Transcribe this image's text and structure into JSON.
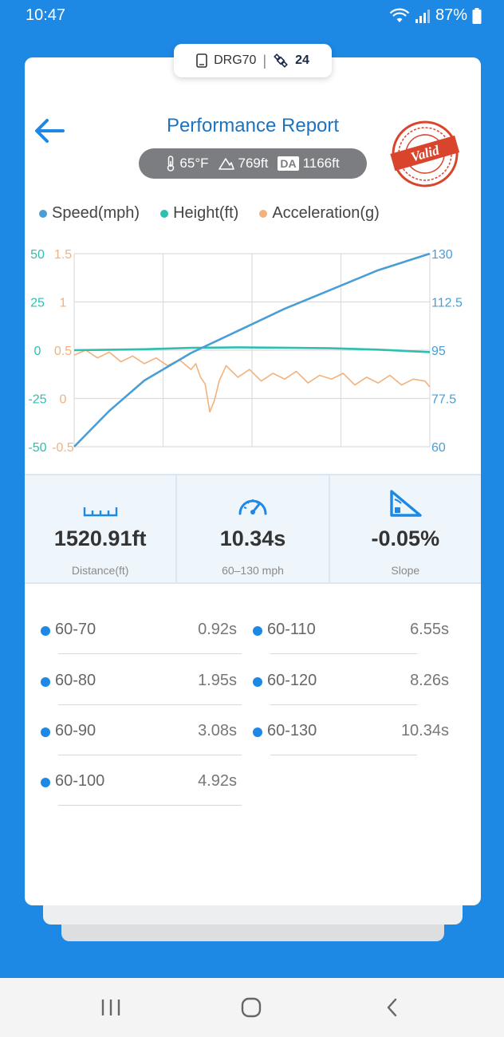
{
  "status": {
    "time": "10:47",
    "battery": "87%"
  },
  "device": {
    "name": "DRG70",
    "satellites": "24"
  },
  "header": {
    "title": "Performance Report",
    "stamp_text": "Valid"
  },
  "conditions": {
    "temperature": "65°F",
    "altitude": "769ft",
    "da_label": "DA",
    "density_altitude": "1166ft"
  },
  "colors": {
    "speed": "#4a9ed6",
    "height": "#2fbfb0",
    "acceleration": "#f2b27d",
    "accent": "#1e88e5"
  },
  "chart_data": {
    "type": "line",
    "legend": [
      "Speed(mph)",
      "Height(ft)",
      "Acceleration(g)"
    ],
    "x_range": [
      0,
      1520.91
    ],
    "grid": true,
    "legend_position": "top",
    "axes": {
      "left_outer": {
        "series": "Height(ft)",
        "ticks": [
          "50",
          "25",
          "0",
          "-25",
          "-50"
        ],
        "range": [
          -50,
          50
        ]
      },
      "left_inner": {
        "series": "Acceleration(g)",
        "ticks": [
          "1.5",
          "1",
          "0.5",
          "0",
          "-0.5"
        ],
        "range": [
          -0.5,
          1.5
        ]
      },
      "right": {
        "series": "Speed(mph)",
        "ticks": [
          "130",
          "112.5",
          "95",
          "77.5",
          "60"
        ],
        "range": [
          60,
          130
        ]
      }
    },
    "series": [
      {
        "name": "Speed(mph)",
        "x": [
          0,
          150,
          300,
          500,
          700,
          900,
          1100,
          1300,
          1520.91
        ],
        "values": [
          60,
          73,
          84,
          94,
          102,
          110,
          117,
          124,
          130
        ]
      },
      {
        "name": "Height(ft)",
        "x": [
          0,
          300,
          500,
          700,
          900,
          1100,
          1300,
          1520.91
        ],
        "values": [
          0,
          0.5,
          1.2,
          1.5,
          1.3,
          1,
          0.3,
          -1
        ]
      },
      {
        "name": "Acceleration(g)",
        "x": [
          0,
          50,
          100,
          150,
          200,
          250,
          300,
          350,
          400,
          450,
          500,
          520,
          540,
          560,
          580,
          600,
          620,
          650,
          700,
          750,
          800,
          850,
          900,
          950,
          1000,
          1050,
          1100,
          1150,
          1200,
          1250,
          1300,
          1350,
          1400,
          1450,
          1500,
          1520.91
        ],
        "values": [
          0.45,
          0.5,
          0.42,
          0.48,
          0.38,
          0.44,
          0.36,
          0.42,
          0.34,
          0.4,
          0.3,
          0.36,
          0.22,
          0.15,
          -0.14,
          -0.02,
          0.18,
          0.34,
          0.22,
          0.3,
          0.18,
          0.26,
          0.2,
          0.28,
          0.16,
          0.24,
          0.2,
          0.26,
          0.14,
          0.22,
          0.16,
          0.24,
          0.14,
          0.2,
          0.18,
          0.12
        ]
      }
    ]
  },
  "stats": [
    {
      "value": "1520.91ft",
      "label": "Distance(ft)"
    },
    {
      "value": "10.34s",
      "label": "60–130 mph"
    },
    {
      "value": "-0.05%",
      "label": "Slope"
    }
  ],
  "splits": [
    {
      "range": "60-70",
      "time": "0.92s"
    },
    {
      "range": "60-80",
      "time": "1.95s"
    },
    {
      "range": "60-90",
      "time": "3.08s"
    },
    {
      "range": "60-100",
      "time": "4.92s"
    },
    {
      "range": "60-110",
      "time": "6.55s"
    },
    {
      "range": "60-120",
      "time": "8.26s"
    },
    {
      "range": "60-130",
      "time": "10.34s"
    }
  ]
}
